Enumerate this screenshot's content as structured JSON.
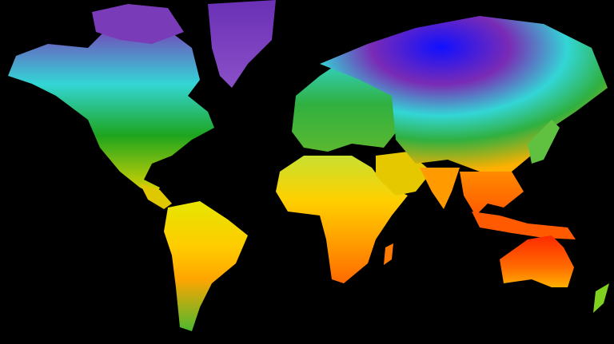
{
  "map": {
    "background": "#000000",
    "color_scale": [
      "#0000ff",
      "#6a2bb0",
      "#00e5e5",
      "#19a019",
      "#e6e600",
      "#ffa500",
      "#ff2000"
    ],
    "regions": {
      "north-america": {
        "colors": [
          "#7a3bb8",
          "#33d6d6",
          "#1ea51e",
          "#e6d600"
        ]
      },
      "greenland": {
        "colors": [
          "#6a30b5",
          "#8a50c8"
        ]
      },
      "south-america": {
        "colors": [
          "#e6e600",
          "#ffcc00",
          "#ffa500",
          "#4cb830"
        ]
      },
      "europe": {
        "colors": [
          "#33d6d6",
          "#30b040",
          "#5ab830"
        ]
      },
      "africa": {
        "colors": [
          "#c8e030",
          "#ffd000",
          "#ff9a00",
          "#ff6a00"
        ]
      },
      "asia": {
        "colors": [
          "#1010ff",
          "#7a2bb5",
          "#33d6d6",
          "#30b040",
          "#ffb000"
        ]
      },
      "southeast-asia": {
        "colors": [
          "#ff8a00",
          "#ff5a00"
        ]
      },
      "australia": {
        "colors": [
          "#ff2a00",
          "#ff6a00",
          "#ffb000"
        ]
      }
    }
  }
}
